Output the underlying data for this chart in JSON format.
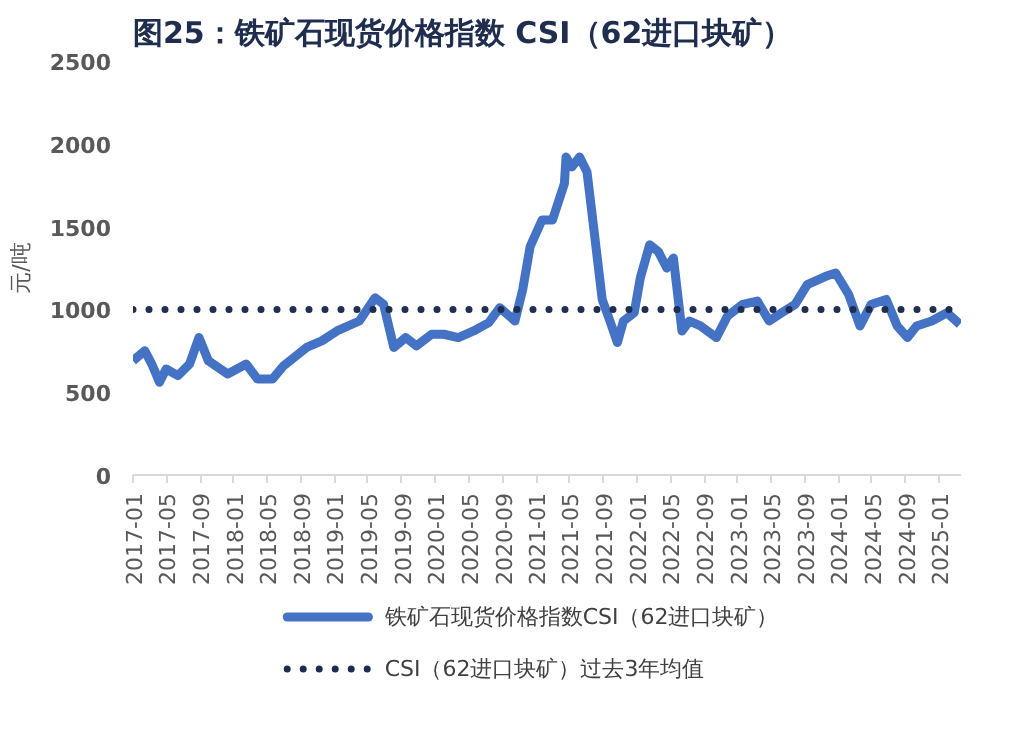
{
  "chart_data": {
    "type": "line",
    "title": "图25：铁矿石现货价格指数 CSI（62进口块矿）",
    "ylabel": "元/吨",
    "x": [
      "2017-01-01",
      "2017-02-13",
      "2017-03-10",
      "2017-04-07",
      "2017-05-01",
      "2017-06-13",
      "2017-07-25",
      "2017-08-28",
      "2017-10-01",
      "2017-12-10",
      "2018-02-15",
      "2018-03-28",
      "2018-05-22",
      "2018-07-01",
      "2018-09-22",
      "2018-11-16",
      "2019-01-10",
      "2019-04-01",
      "2019-05-28",
      "2019-06-28",
      "2019-08-04",
      "2019-09-16",
      "2019-10-25",
      "2019-12-19",
      "2020-02-01",
      "2020-03-25",
      "2020-05-19",
      "2020-07-13",
      "2020-08-22",
      "2020-10-16",
      "2020-11-13",
      "2020-12-10",
      "2021-01-22",
      "2021-03-01",
      "2021-04-13",
      "2021-04-19",
      "2021-05-10",
      "2021-06-07",
      "2021-07-04",
      "2021-08-01",
      "2021-08-28",
      "2021-09-25",
      "2021-10-22",
      "2021-11-13",
      "2021-12-22",
      "2022-01-13",
      "2022-02-16",
      "2022-03-19",
      "2022-04-19",
      "2022-05-13",
      "2022-06-13",
      "2022-07-10",
      "2022-08-19",
      "2022-10-16",
      "2022-11-25",
      "2023-01-19",
      "2023-03-13",
      "2023-04-25",
      "2023-06-19",
      "2023-07-28",
      "2023-09-10",
      "2023-11-16",
      "2023-12-22",
      "2024-02-07",
      "2024-03-19",
      "2024-04-28",
      "2024-06-22",
      "2024-08-01",
      "2024-09-07",
      "2024-10-10",
      "2024-12-04",
      "2025-01-28",
      "2025-03-16"
    ],
    "series": [
      {
        "name": "铁矿石现货价格指数CSI（62进口块矿）",
        "color": "#4472c4",
        "values": [
          690,
          750,
          670,
          560,
          640,
          600,
          670,
          830,
          690,
          610,
          670,
          580,
          580,
          660,
          770,
          810,
          870,
          930,
          1070,
          1030,
          770,
          830,
          780,
          850,
          850,
          830,
          870,
          920,
          1010,
          930,
          1120,
          1380,
          1540,
          1540,
          1760,
          1920,
          1860,
          1920,
          1830,
          1440,
          1060,
          930,
          800,
          930,
          980,
          1190,
          1390,
          1350,
          1250,
          1310,
          870,
          930,
          900,
          830,
          960,
          1030,
          1050,
          930,
          990,
          1030,
          1150,
          1200,
          1220,
          1090,
          900,
          1030,
          1060,
          900,
          830,
          900,
          930,
          980,
          910
        ]
      }
    ],
    "ref_lines": [
      {
        "axis": "y",
        "value": 1000,
        "label": "CSI（62进口块矿）过去3年均值",
        "color": "#1f2d4f",
        "line_style": "dotted"
      }
    ],
    "xlim": [
      "2017-01-01",
      "2025-03-20"
    ],
    "xticks": [
      "2017-01",
      "2017-05",
      "2017-09",
      "2018-01",
      "2018-05",
      "2018-09",
      "2019-01",
      "2019-05",
      "2019-09",
      "2020-01",
      "2020-05",
      "2020-09",
      "2021-01",
      "2021-05",
      "2021-09",
      "2022-01",
      "2022-05",
      "2022-09",
      "2023-01",
      "2023-05",
      "2023-09",
      "2024-01",
      "2024-05",
      "2024-09",
      "2025-01"
    ],
    "ylim": [
      0,
      2500
    ],
    "yticks": [
      0,
      500,
      1000,
      1500,
      2000,
      2500
    ],
    "grid": false,
    "legend": "bottom",
    "marker": "none",
    "line_style": "solid"
  }
}
